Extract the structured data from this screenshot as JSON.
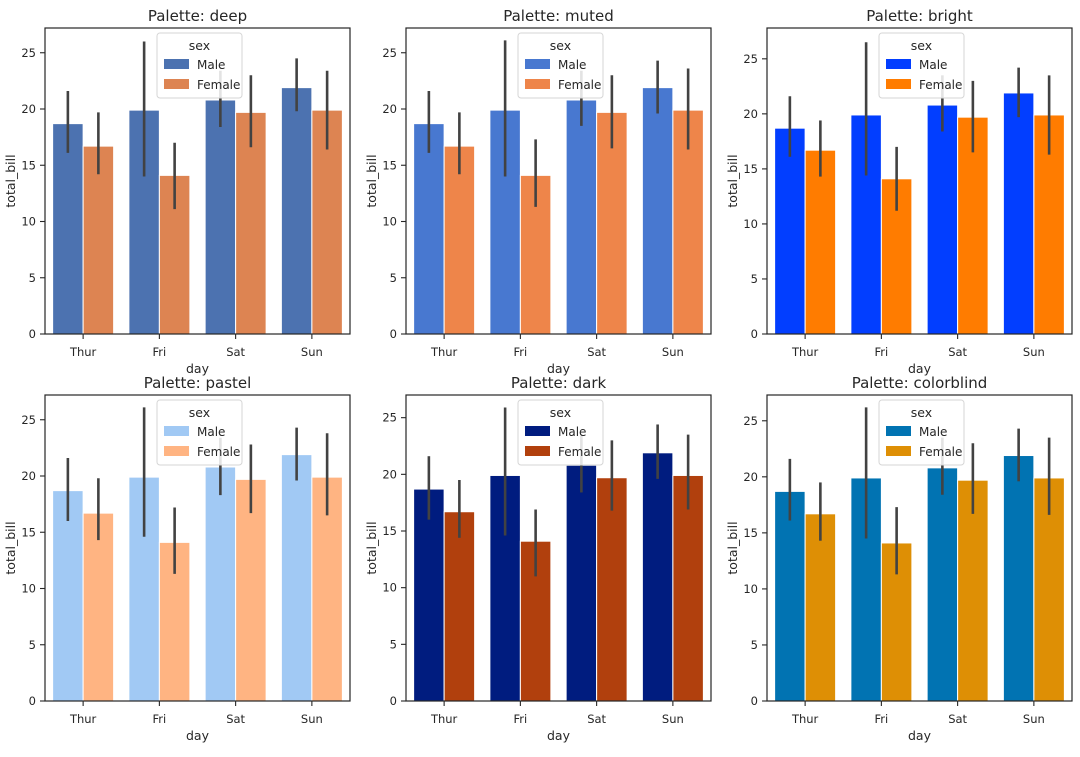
{
  "chart_data": [
    {
      "type": "bar",
      "title": "Palette: deep",
      "xlabel": "day",
      "ylabel": "total_bill",
      "categories": [
        "Thur",
        "Fri",
        "Sat",
        "Sun"
      ],
      "yticks": [
        "0",
        "5",
        "10",
        "15",
        "20",
        "25"
      ],
      "ylim": [
        0,
        27.2
      ],
      "legend": {
        "title": "sex",
        "position": "upper-center"
      },
      "series": [
        {
          "name": "Male",
          "color": "#4c72b0",
          "values": [
            18.7,
            19.9,
            20.8,
            21.9
          ],
          "ci": [
            [
              16.1,
              21.6
            ],
            [
              14.0,
              26.0
            ],
            [
              18.4,
              23.4
            ],
            [
              19.8,
              24.5
            ]
          ]
        },
        {
          "name": "Female",
          "color": "#dd8452",
          "values": [
            16.7,
            14.1,
            19.7,
            19.9
          ],
          "ci": [
            [
              14.2,
              19.7
            ],
            [
              11.1,
              17.0
            ],
            [
              16.6,
              23.0
            ],
            [
              16.4,
              23.4
            ]
          ]
        }
      ]
    },
    {
      "type": "bar",
      "title": "Palette: muted",
      "xlabel": "day",
      "ylabel": "total_bill",
      "categories": [
        "Thur",
        "Fri",
        "Sat",
        "Sun"
      ],
      "yticks": [
        "0",
        "5",
        "10",
        "15",
        "20",
        "25"
      ],
      "ylim": [
        0,
        27.2
      ],
      "legend": {
        "title": "sex",
        "position": "upper-center"
      },
      "series": [
        {
          "name": "Male",
          "color": "#4878d0",
          "values": [
            18.7,
            19.9,
            20.8,
            21.9
          ],
          "ci": [
            [
              16.1,
              21.6
            ],
            [
              14.0,
              26.1
            ],
            [
              18.5,
              23.4
            ],
            [
              19.6,
              24.3
            ]
          ]
        },
        {
          "name": "Female",
          "color": "#ee854a",
          "values": [
            16.7,
            14.1,
            19.7,
            19.9
          ],
          "ci": [
            [
              14.2,
              19.7
            ],
            [
              11.3,
              17.3
            ],
            [
              16.5,
              23.0
            ],
            [
              16.4,
              23.6
            ]
          ]
        }
      ]
    },
    {
      "type": "bar",
      "title": "Palette: bright",
      "xlabel": "day",
      "ylabel": "total_bill",
      "categories": [
        "Thur",
        "Fri",
        "Sat",
        "Sun"
      ],
      "yticks": [
        "0",
        "5",
        "10",
        "15",
        "20",
        "25"
      ],
      "ylim": [
        0,
        27.8
      ],
      "legend": {
        "title": "sex",
        "position": "upper-center"
      },
      "series": [
        {
          "name": "Male",
          "color": "#023eff",
          "values": [
            18.7,
            19.9,
            20.8,
            21.9
          ],
          "ci": [
            [
              16.1,
              21.6
            ],
            [
              14.4,
              26.5
            ],
            [
              18.4,
              23.5
            ],
            [
              19.7,
              24.2
            ]
          ]
        },
        {
          "name": "Female",
          "color": "#ff7c00",
          "values": [
            16.7,
            14.1,
            19.7,
            19.9
          ],
          "ci": [
            [
              14.3,
              19.4
            ],
            [
              11.2,
              17.0
            ],
            [
              16.5,
              23.0
            ],
            [
              16.3,
              23.5
            ]
          ]
        }
      ]
    },
    {
      "type": "bar",
      "title": "Palette: pastel",
      "xlabel": "day",
      "ylabel": "total_bill",
      "categories": [
        "Thur",
        "Fri",
        "Sat",
        "Sun"
      ],
      "yticks": [
        "0",
        "5",
        "10",
        "15",
        "20",
        "25"
      ],
      "ylim": [
        0,
        27.2
      ],
      "legend": {
        "title": "sex",
        "position": "upper-center"
      },
      "series": [
        {
          "name": "Male",
          "color": "#a1c9f4",
          "values": [
            18.7,
            19.9,
            20.8,
            21.9
          ],
          "ci": [
            [
              16.0,
              21.6
            ],
            [
              14.6,
              26.1
            ],
            [
              18.3,
              23.4
            ],
            [
              19.6,
              24.3
            ]
          ]
        },
        {
          "name": "Female",
          "color": "#ffb482",
          "values": [
            16.7,
            14.1,
            19.7,
            19.9
          ],
          "ci": [
            [
              14.3,
              19.8
            ],
            [
              11.3,
              17.2
            ],
            [
              16.7,
              22.8
            ],
            [
              16.5,
              23.8
            ]
          ]
        }
      ]
    },
    {
      "type": "bar",
      "title": "Palette: dark",
      "xlabel": "day",
      "ylabel": "total_bill",
      "categories": [
        "Thur",
        "Fri",
        "Sat",
        "Sun"
      ],
      "yticks": [
        "0",
        "5",
        "10",
        "15",
        "20",
        "25"
      ],
      "ylim": [
        0,
        27.0
      ],
      "legend": {
        "title": "sex",
        "position": "upper-center"
      },
      "series": [
        {
          "name": "Male",
          "color": "#001c7f",
          "values": [
            18.7,
            19.9,
            20.8,
            21.9
          ],
          "ci": [
            [
              16.0,
              21.6
            ],
            [
              14.6,
              25.9
            ],
            [
              18.4,
              23.4
            ],
            [
              19.6,
              24.4
            ]
          ]
        },
        {
          "name": "Female",
          "color": "#b1400d",
          "values": [
            16.7,
            14.1,
            19.7,
            19.9
          ],
          "ci": [
            [
              14.4,
              19.5
            ],
            [
              11.0,
              16.9
            ],
            [
              16.8,
              23.0
            ],
            [
              16.9,
              23.5
            ]
          ]
        }
      ]
    },
    {
      "type": "bar",
      "title": "Palette: colorblind",
      "xlabel": "day",
      "ylabel": "total_bill",
      "categories": [
        "Thur",
        "Fri",
        "Sat",
        "Sun"
      ],
      "yticks": [
        "0",
        "5",
        "10",
        "15",
        "20",
        "25"
      ],
      "ylim": [
        0,
        27.3
      ],
      "legend": {
        "title": "sex",
        "position": "upper-center"
      },
      "series": [
        {
          "name": "Male",
          "color": "#0173b2",
          "values": [
            18.7,
            19.9,
            20.8,
            21.9
          ],
          "ci": [
            [
              16.1,
              21.6
            ],
            [
              14.5,
              26.2
            ],
            [
              18.4,
              23.5
            ],
            [
              19.6,
              24.3
            ]
          ]
        },
        {
          "name": "Female",
          "color": "#de8f05",
          "values": [
            16.7,
            14.1,
            19.7,
            19.9
          ],
          "ci": [
            [
              14.3,
              19.5
            ],
            [
              11.3,
              17.3
            ],
            [
              16.7,
              23.0
            ],
            [
              16.6,
              23.5
            ]
          ]
        }
      ]
    }
  ]
}
